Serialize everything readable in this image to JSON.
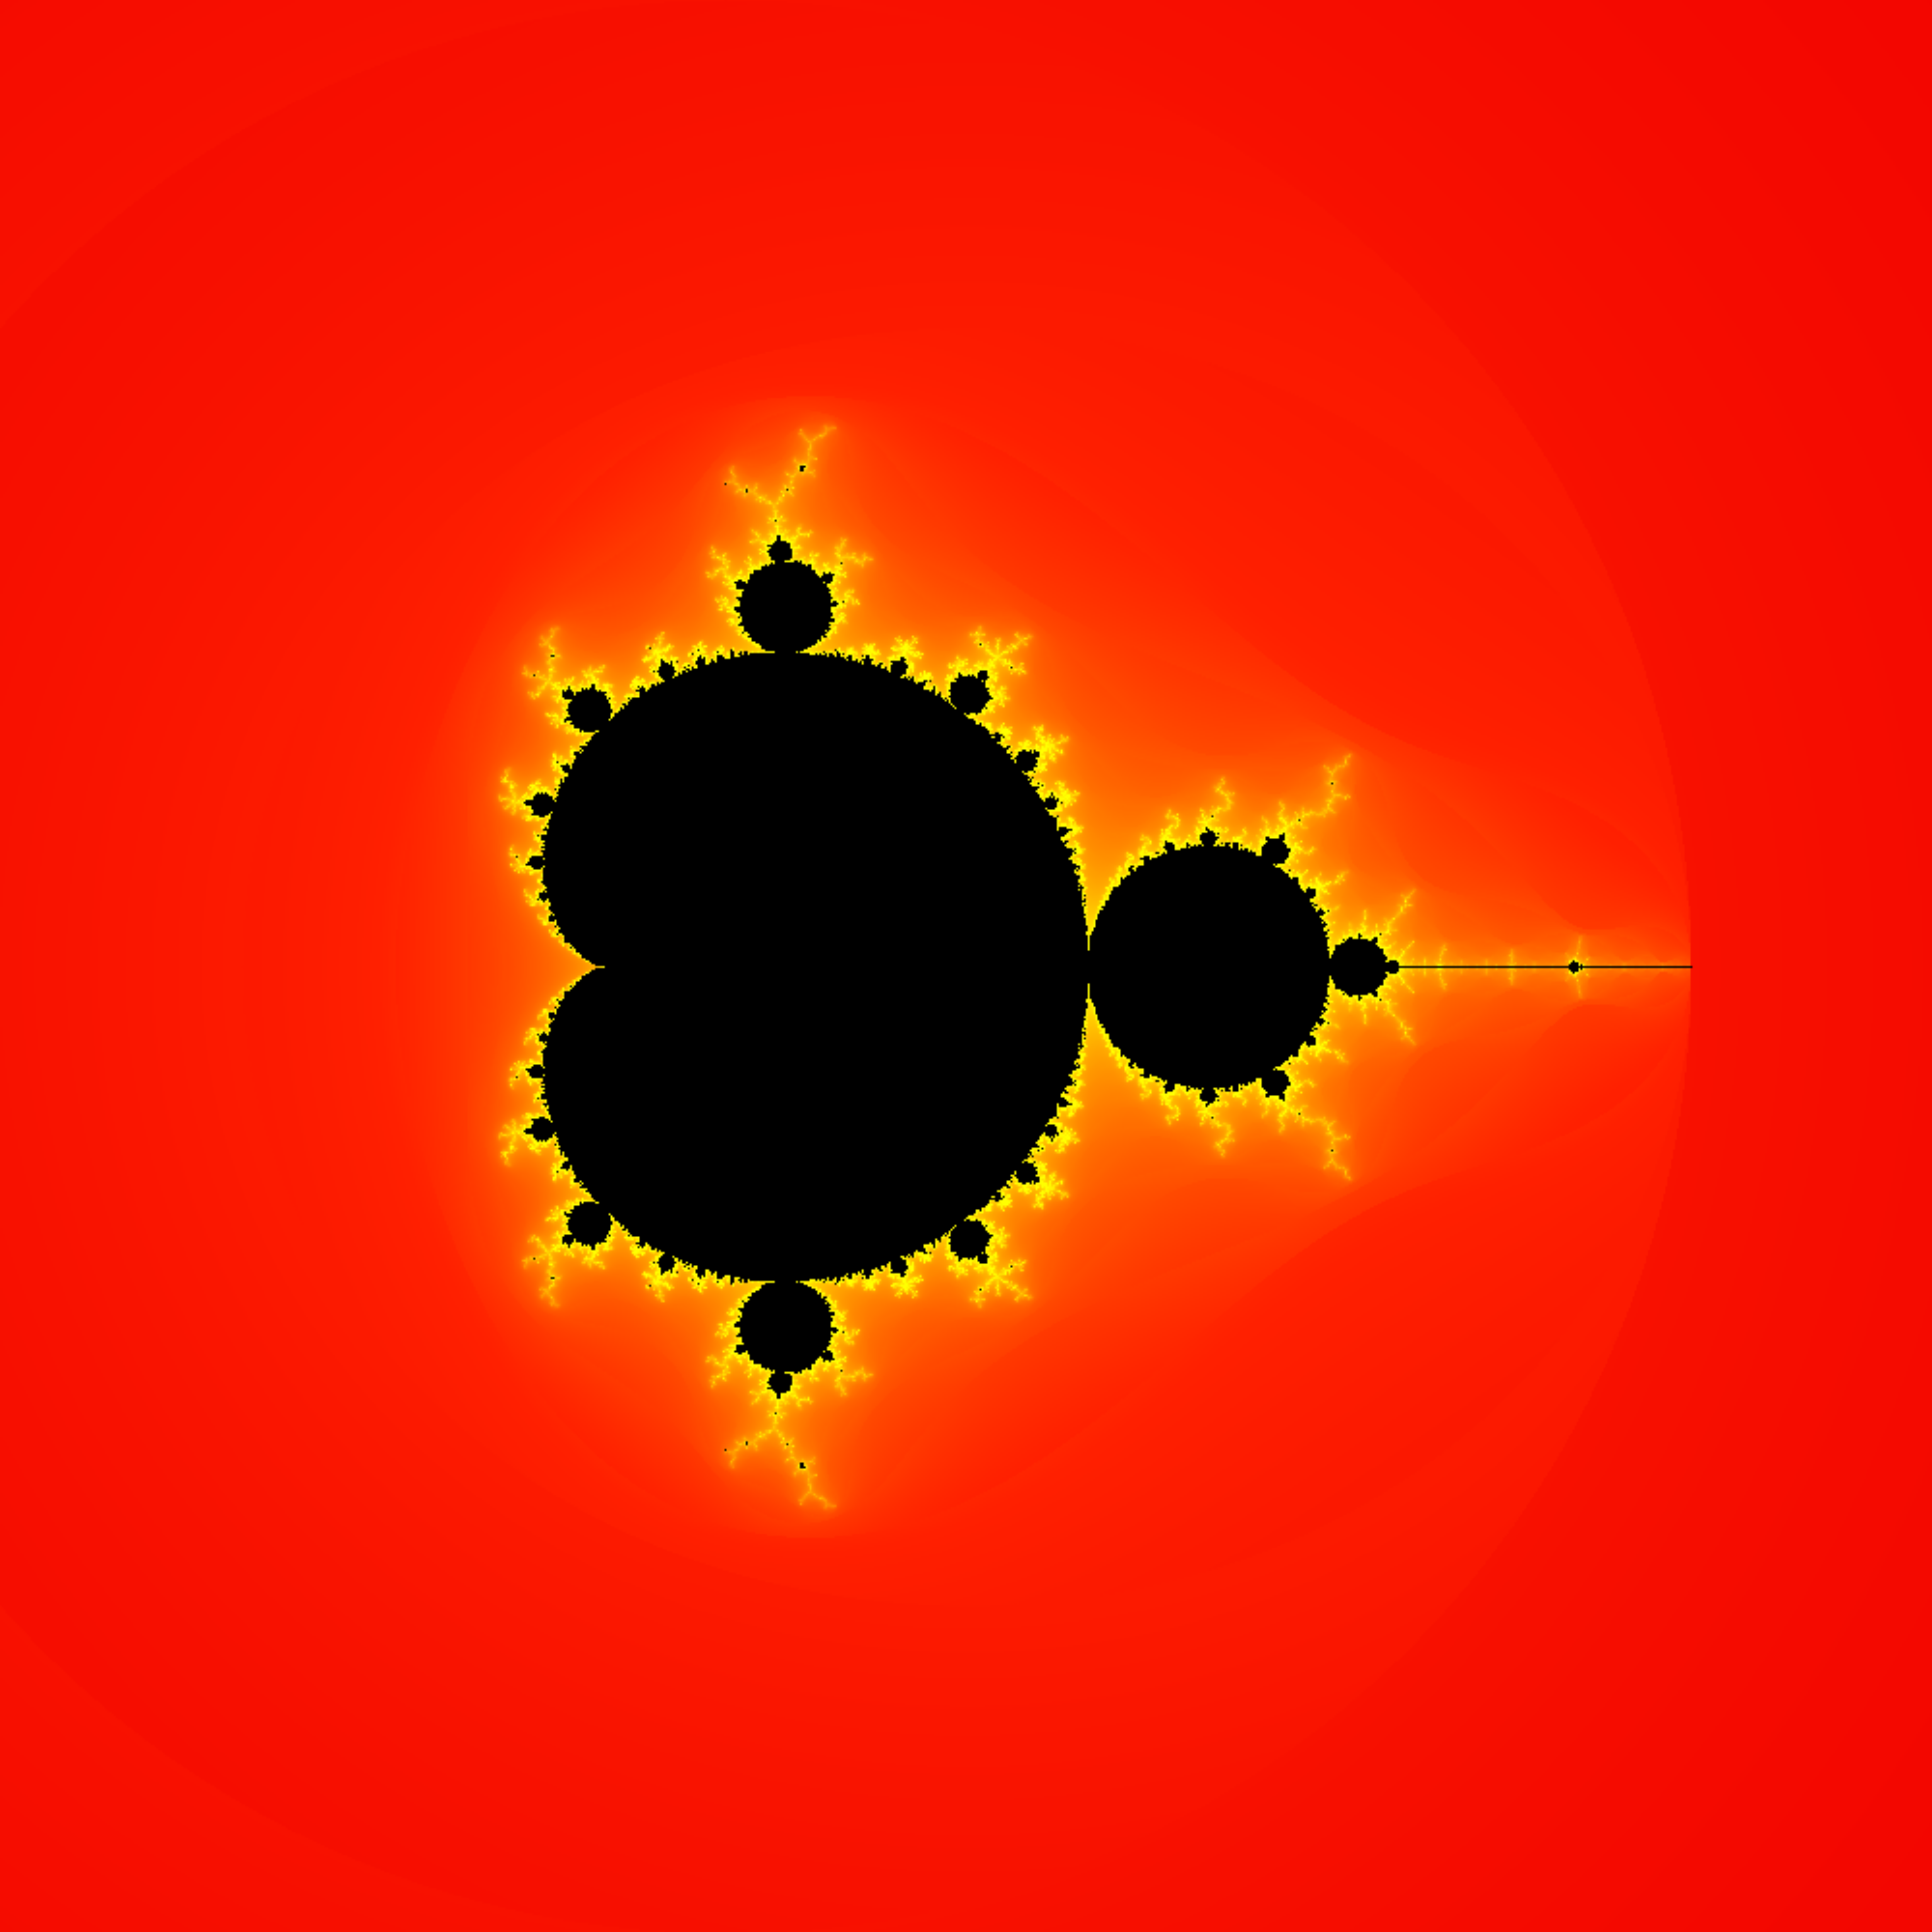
{
  "image": {
    "subject": "mandelbrot-set-render",
    "orientation": "mirrored-horizontally",
    "colors": {
      "interior": "#000000",
      "background": "#f00000",
      "glow_inner": "#ffff00",
      "glow_mid": "#ff8000",
      "glow_outer": "#ff2000"
    },
    "render": {
      "center_real": -0.5,
      "center_imag": 0.0,
      "span": 4.0,
      "max_iterations": 200
    }
  }
}
